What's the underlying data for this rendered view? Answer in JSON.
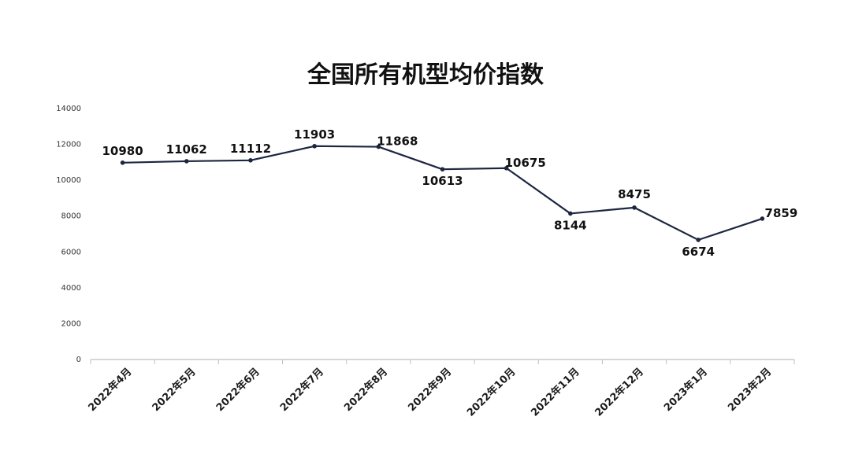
{
  "chart_data": {
    "type": "line",
    "title": "全国所有机型均价指数",
    "xlabel": "",
    "ylabel": "",
    "ylim": [
      0,
      14000
    ],
    "yticks": [
      0,
      2000,
      4000,
      6000,
      8000,
      10000,
      12000,
      14000
    ],
    "grid": false,
    "legend": "none",
    "categories": [
      "2022年4月",
      "2022年5月",
      "2022年6月",
      "2022年7月",
      "2022年8月",
      "2022年9月",
      "2022年10月",
      "2022年11月",
      "2022年12月",
      "2023年1月",
      "2023年2月"
    ],
    "series": [
      {
        "values": [
          10980,
          11062,
          11112,
          11903,
          11868,
          10613,
          10675,
          8144,
          8475,
          6674,
          7859
        ],
        "color": "#1c2640"
      }
    ],
    "axis_color": "#bfbfbf"
  }
}
